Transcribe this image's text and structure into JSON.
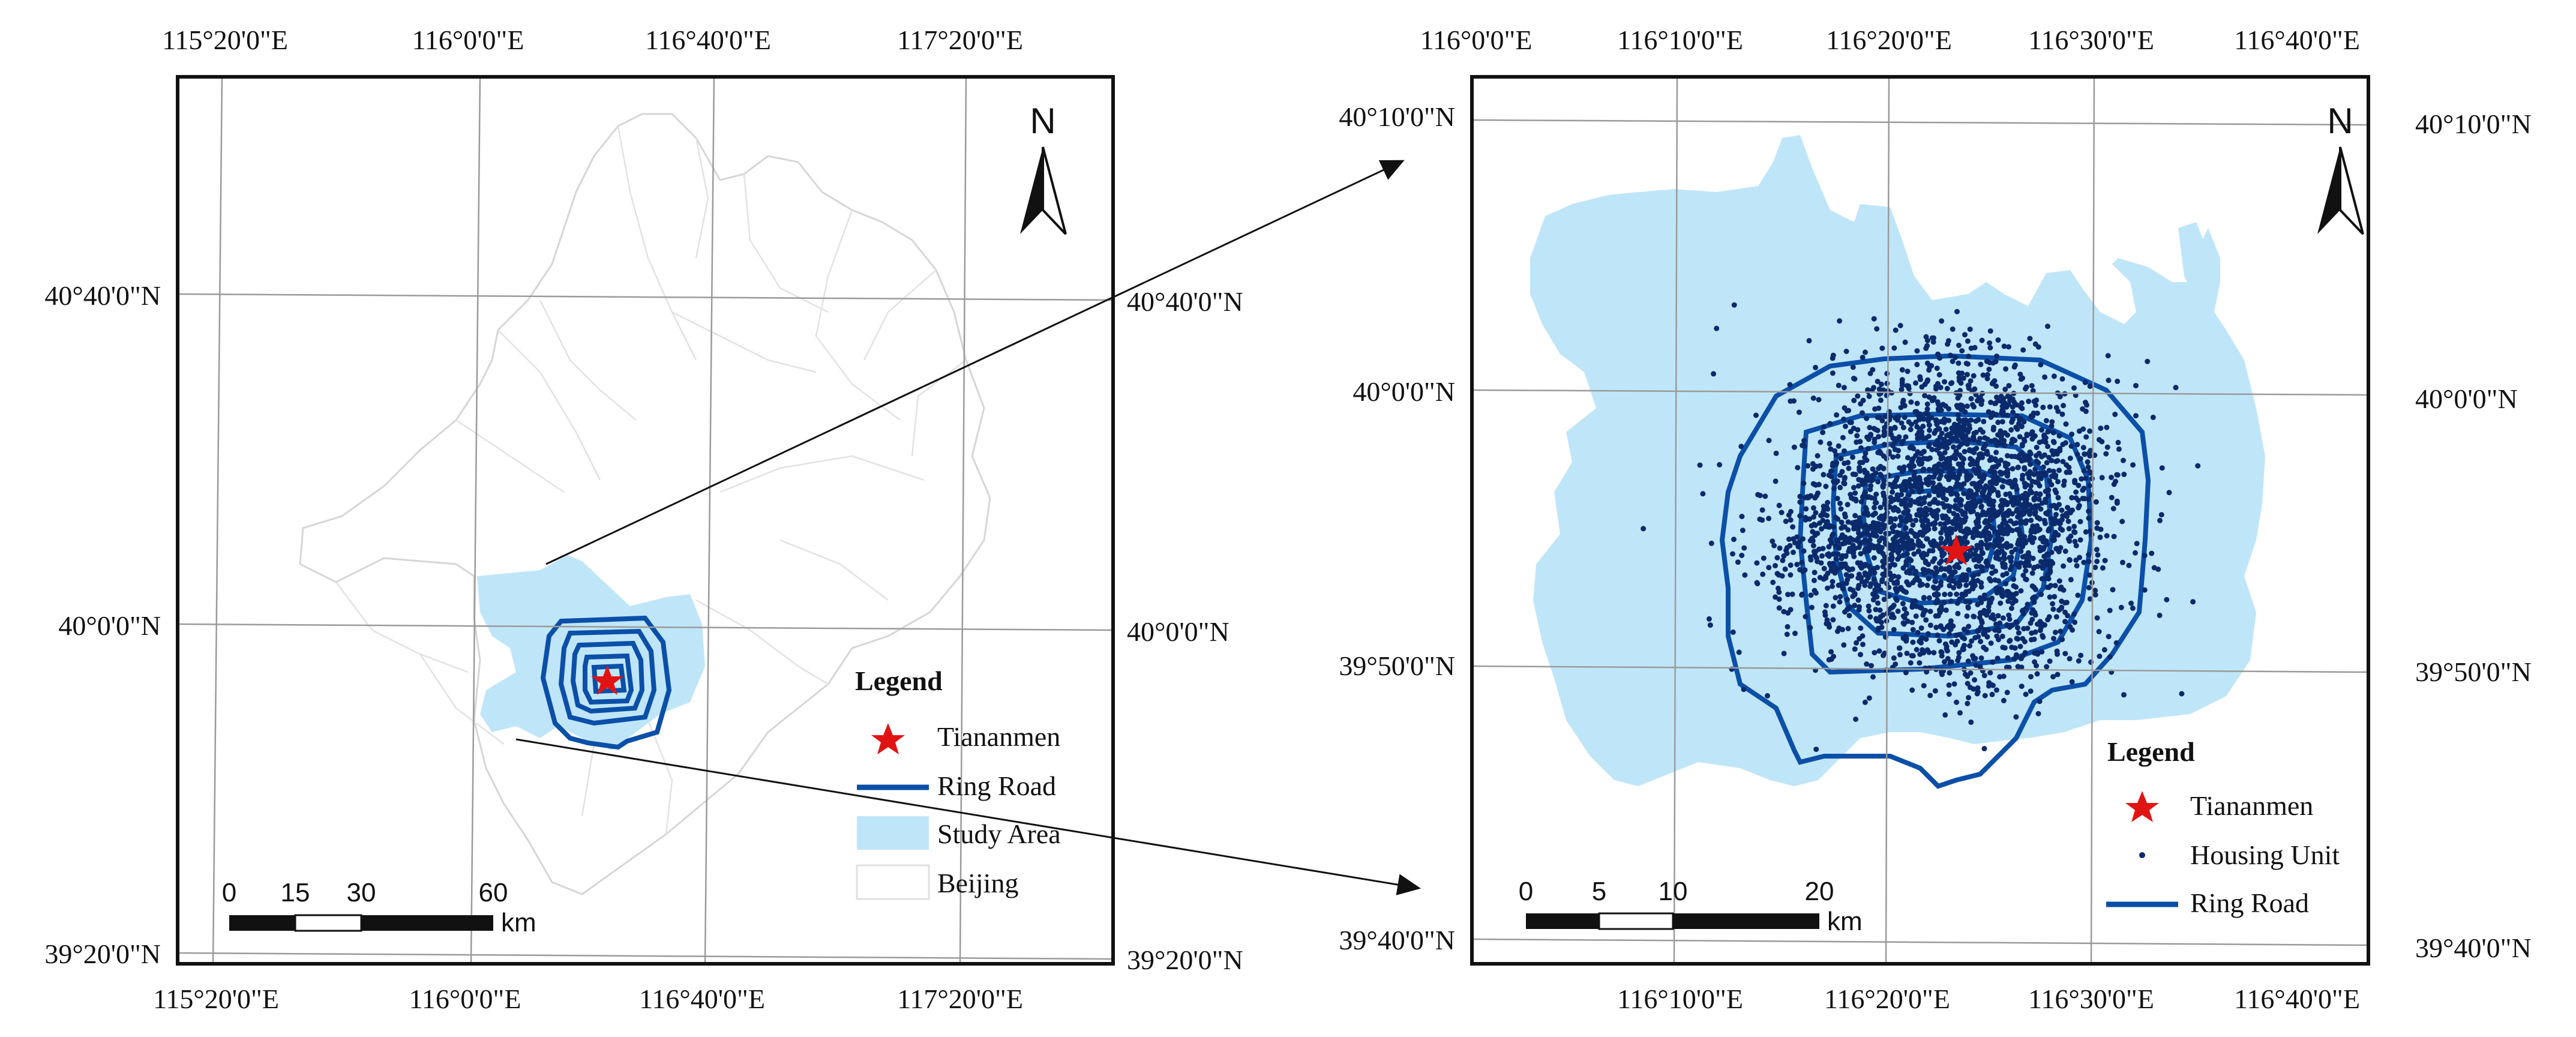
{
  "colors": {
    "study_area": "#bfe6f8",
    "ring_road": "#0b4fa8",
    "housing_unit": "#0b2a6b",
    "tiananmen": "#e11414",
    "graticule": "#9a9a9a",
    "district_lines": "#d6d6d6"
  },
  "left_map": {
    "top_labels": [
      "115°20'0\"E",
      "116°0'0\"E",
      "116°40'0\"E",
      "117°20'0\"E"
    ],
    "bottom_labels": [
      "115°20'0\"E",
      "116°0'0\"E",
      "116°40'0\"E",
      "117°20'0\"E"
    ],
    "left_labels": [
      "40°40'0\"N",
      "40°0'0\"N",
      "39°20'0\"N"
    ],
    "right_labels": [
      "40°40'0\"N",
      "40°0'0\"N",
      "39°20'0\"N"
    ],
    "north_label": "N",
    "legend": {
      "title": "Legend",
      "items": [
        {
          "label": "Tiananmen",
          "symbol": "star-icon"
        },
        {
          "label": "Ring Road",
          "symbol": "line"
        },
        {
          "label": "Study Area",
          "symbol": "fill"
        },
        {
          "label": "Beijing",
          "symbol": "outline"
        }
      ]
    },
    "scale": {
      "ticks": [
        "0",
        "15",
        "30",
        "60"
      ],
      "unit": "km"
    }
  },
  "right_map": {
    "top_labels": [
      "116°0'0\"E",
      "116°10'0\"E",
      "116°20'0\"E",
      "116°30'0\"E",
      "116°40'0\"E"
    ],
    "bottom_labels": [
      "116°10'0\"E",
      "116°20'0\"E",
      "116°30'0\"E",
      "116°40'0\"E"
    ],
    "left_labels": [
      "40°10'0\"N",
      "40°0'0\"N",
      "39°50'0\"N",
      "39°40'0\"N"
    ],
    "right_labels": [
      "40°10'0\"N",
      "40°0'0\"N",
      "39°50'0\"N",
      "39°40'0\"N"
    ],
    "north_label": "N",
    "legend": {
      "title": "Legend",
      "items": [
        {
          "label": "Tiananmen",
          "symbol": "star-icon"
        },
        {
          "label": "Housing Unit",
          "symbol": "dot"
        },
        {
          "label": "Ring Road",
          "symbol": "line"
        }
      ]
    },
    "scale": {
      "ticks": [
        "0",
        "5",
        "10",
        "20"
      ],
      "unit": "km"
    }
  }
}
